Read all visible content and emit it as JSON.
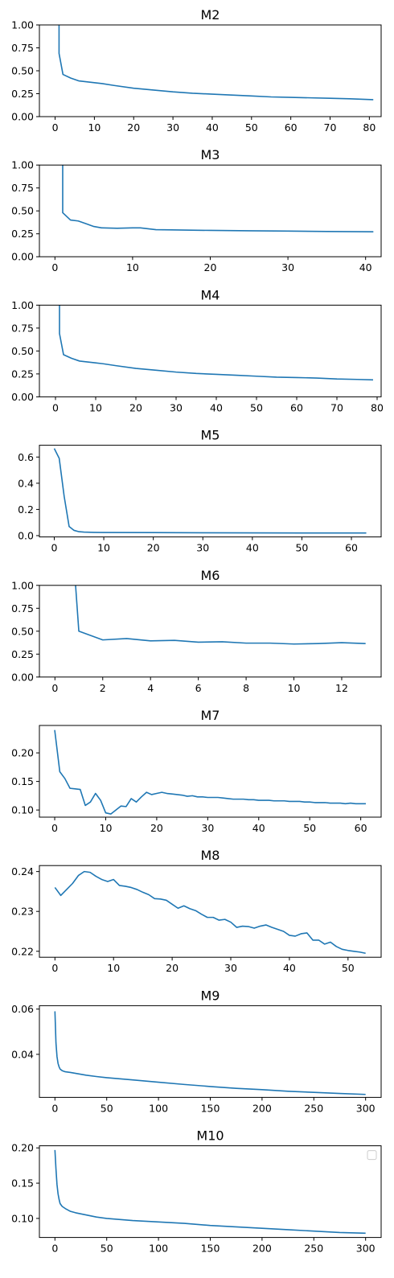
{
  "chart_data": [
    {
      "type": "line",
      "title": "M2",
      "xlim": [
        -4,
        83
      ],
      "ylim": [
        0,
        1.0
      ],
      "xticks": [
        0,
        10,
        20,
        30,
        40,
        50,
        60,
        70,
        80
      ],
      "xtick_labels": [
        "0",
        "10",
        "20",
        "30",
        "40",
        "50",
        "60",
        "70",
        "80"
      ],
      "yticks": [
        0,
        0.25,
        0.5,
        0.75,
        1.0
      ],
      "ytick_labels": [
        "0.00",
        "0.25",
        "0.50",
        "0.75",
        "1.00"
      ],
      "series": [
        {
          "x": [
            1,
            1,
            2,
            4,
            6,
            10,
            12,
            15,
            20,
            25,
            30,
            35,
            40,
            45,
            50,
            55,
            60,
            65,
            70,
            75,
            81
          ],
          "y": [
            1.05,
            0.69,
            0.46,
            0.42,
            0.39,
            0.37,
            0.36,
            0.34,
            0.31,
            0.29,
            0.27,
            0.255,
            0.245,
            0.235,
            0.225,
            0.215,
            0.21,
            0.205,
            0.2,
            0.195,
            0.185
          ]
        }
      ]
    },
    {
      "type": "line",
      "title": "M3",
      "xlim": [
        -2,
        42
      ],
      "ylim": [
        0,
        1.0
      ],
      "xticks": [
        0,
        10,
        20,
        30,
        40
      ],
      "xtick_labels": [
        "0",
        "10",
        "20",
        "30",
        "40"
      ],
      "yticks": [
        0,
        0.25,
        0.5,
        0.75,
        1.0
      ],
      "ytick_labels": [
        "0.00",
        "0.25",
        "0.50",
        "0.75",
        "1.00"
      ],
      "series": [
        {
          "x": [
            1,
            1,
            2,
            3,
            4,
            5,
            6,
            8,
            10,
            11,
            12,
            13,
            15,
            20,
            25,
            30,
            35,
            41
          ],
          "y": [
            1.05,
            0.48,
            0.4,
            0.39,
            0.36,
            0.33,
            0.315,
            0.31,
            0.315,
            0.315,
            0.305,
            0.295,
            0.293,
            0.287,
            0.283,
            0.28,
            0.275,
            0.272
          ]
        }
      ]
    },
    {
      "type": "line",
      "title": "M4",
      "xlim": [
        -4,
        81
      ],
      "ylim": [
        0,
        1.0
      ],
      "xticks": [
        0,
        10,
        20,
        30,
        40,
        50,
        60,
        70,
        80
      ],
      "xtick_labels": [
        "0",
        "10",
        "20",
        "30",
        "40",
        "50",
        "60",
        "70",
        "80"
      ],
      "yticks": [
        0,
        0.25,
        0.5,
        0.75,
        1.0
      ],
      "ytick_labels": [
        "0.00",
        "0.25",
        "0.50",
        "0.75",
        "1.00"
      ],
      "series": [
        {
          "x": [
            1,
            1,
            2,
            4,
            6,
            10,
            12,
            15,
            20,
            25,
            30,
            35,
            40,
            45,
            50,
            55,
            60,
            65,
            70,
            75,
            79
          ],
          "y": [
            1.05,
            0.69,
            0.46,
            0.42,
            0.39,
            0.37,
            0.36,
            0.34,
            0.31,
            0.29,
            0.27,
            0.255,
            0.245,
            0.235,
            0.225,
            0.215,
            0.21,
            0.205,
            0.195,
            0.19,
            0.185
          ]
        }
      ]
    },
    {
      "type": "line",
      "title": "M5",
      "xlim": [
        -3,
        66
      ],
      "ylim": [
        -0.01,
        0.69
      ],
      "xticks": [
        0,
        10,
        20,
        30,
        40,
        50,
        60
      ],
      "xtick_labels": [
        "0",
        "10",
        "20",
        "30",
        "40",
        "50",
        "60"
      ],
      "yticks": [
        0,
        0.2,
        0.4,
        0.6
      ],
      "ytick_labels": [
        "0.0",
        "0.2",
        "0.4",
        "0.6"
      ],
      "series": [
        {
          "x": [
            0,
            1,
            2,
            3,
            4,
            5,
            6,
            8,
            10,
            20,
            30,
            40,
            50,
            63
          ],
          "y": [
            0.665,
            0.59,
            0.3,
            0.07,
            0.04,
            0.03,
            0.027,
            0.025,
            0.024,
            0.023,
            0.022,
            0.021,
            0.02,
            0.02
          ]
        }
      ]
    },
    {
      "type": "line",
      "title": "M6",
      "xlim": [
        -0.65,
        13.65
      ],
      "ylim": [
        0,
        1.0
      ],
      "xticks": [
        0,
        2,
        4,
        6,
        8,
        10,
        12
      ],
      "xtick_labels": [
        "0",
        "2",
        "4",
        "6",
        "8",
        "10",
        "12"
      ],
      "yticks": [
        0,
        0.25,
        0.5,
        0.75,
        1.0
      ],
      "ytick_labels": [
        "0.00",
        "0.25",
        "0.50",
        "0.75",
        "1.00"
      ],
      "series": [
        {
          "x": [
            0.85,
            1,
            2,
            3,
            4,
            5,
            6,
            7,
            8,
            9,
            10,
            11,
            12,
            13
          ],
          "y": [
            1.05,
            0.5,
            0.405,
            0.42,
            0.395,
            0.4,
            0.38,
            0.385,
            0.37,
            0.37,
            0.36,
            0.365,
            0.375,
            0.365
          ]
        }
      ]
    },
    {
      "type": "line",
      "title": "M7",
      "xlim": [
        -3,
        64
      ],
      "ylim": [
        0.0875,
        0.248
      ],
      "xticks": [
        0,
        10,
        20,
        30,
        40,
        50,
        60
      ],
      "xtick_labels": [
        "0",
        "10",
        "20",
        "30",
        "40",
        "50",
        "60"
      ],
      "yticks": [
        0.1,
        0.15,
        0.2
      ],
      "ytick_labels": [
        "0.10",
        "0.15",
        "0.20"
      ],
      "series": [
        {
          "x": [
            0,
            1,
            2,
            3,
            4,
            5,
            6,
            7,
            8,
            9,
            10,
            11,
            12,
            13,
            14,
            15,
            16,
            17,
            18,
            19,
            20,
            21,
            22,
            23,
            24,
            25,
            26,
            27,
            28,
            29,
            30,
            31,
            32,
            33,
            34,
            35,
            36,
            37,
            38,
            39,
            40,
            41,
            42,
            43,
            44,
            45,
            46,
            47,
            48,
            49,
            50,
            51,
            52,
            53,
            54,
            55,
            56,
            57,
            58,
            59,
            60,
            61
          ],
          "y": [
            0.24,
            0.167,
            0.155,
            0.138,
            0.137,
            0.136,
            0.108,
            0.114,
            0.129,
            0.117,
            0.095,
            0.093,
            0.1,
            0.107,
            0.106,
            0.12,
            0.114,
            0.123,
            0.131,
            0.127,
            0.129,
            0.131,
            0.129,
            0.128,
            0.127,
            0.126,
            0.124,
            0.125,
            0.123,
            0.123,
            0.122,
            0.122,
            0.122,
            0.121,
            0.12,
            0.119,
            0.119,
            0.119,
            0.118,
            0.118,
            0.117,
            0.117,
            0.117,
            0.116,
            0.116,
            0.116,
            0.115,
            0.115,
            0.115,
            0.114,
            0.114,
            0.113,
            0.113,
            0.113,
            0.112,
            0.112,
            0.112,
            0.111,
            0.112,
            0.111,
            0.111,
            0.111
          ]
        }
      ]
    },
    {
      "type": "line",
      "title": "M8",
      "xlim": [
        -2.65,
        55.65
      ],
      "ylim": [
        0.2185,
        0.2415
      ],
      "xticks": [
        0,
        10,
        20,
        30,
        40,
        50
      ],
      "xtick_labels": [
        "0",
        "10",
        "20",
        "30",
        "40",
        "50"
      ],
      "yticks": [
        0.22,
        0.23,
        0.24
      ],
      "ytick_labels": [
        "0.22",
        "0.23",
        "0.24"
      ],
      "series": [
        {
          "x": [
            0,
            1,
            2,
            3,
            4,
            5,
            6,
            7,
            8,
            9,
            10,
            11,
            12,
            13,
            14,
            15,
            16,
            17,
            18,
            19,
            20,
            21,
            22,
            23,
            24,
            25,
            26,
            27,
            28,
            29,
            30,
            31,
            32,
            33,
            34,
            35,
            36,
            37,
            38,
            39,
            40,
            41,
            42,
            43,
            44,
            45,
            46,
            47,
            48,
            49,
            50,
            51,
            52,
            53
          ],
          "y": [
            0.236,
            0.234,
            0.2355,
            0.237,
            0.239,
            0.24,
            0.2398,
            0.2388,
            0.238,
            0.2375,
            0.238,
            0.2365,
            0.2363,
            0.236,
            0.2355,
            0.2348,
            0.2342,
            0.2332,
            0.2331,
            0.2328,
            0.2318,
            0.2308,
            0.2314,
            0.2307,
            0.2302,
            0.2293,
            0.2285,
            0.2285,
            0.2278,
            0.228,
            0.2273,
            0.226,
            0.2263,
            0.2262,
            0.2258,
            0.2263,
            0.2266,
            0.226,
            0.2255,
            0.225,
            0.224,
            0.2238,
            0.2244,
            0.2246,
            0.2228,
            0.2228,
            0.2218,
            0.2223,
            0.2212,
            0.2205,
            0.2202,
            0.22,
            0.2198,
            0.2195
          ]
        }
      ]
    },
    {
      "type": "line",
      "title": "M9",
      "xlim": [
        -15,
        315
      ],
      "ylim": [
        0.021,
        0.0615
      ],
      "xticks": [
        0,
        50,
        100,
        150,
        200,
        250,
        300
      ],
      "xtick_labels": [
        "0",
        "50",
        "100",
        "150",
        "200",
        "250",
        "300"
      ],
      "yticks": [
        0.04,
        0.06
      ],
      "ytick_labels": [
        "0.04",
        "0.06"
      ],
      "series": [
        {
          "x": [
            0,
            1,
            2,
            3,
            4,
            5,
            7,
            10,
            15,
            20,
            30,
            40,
            50,
            75,
            100,
            125,
            150,
            175,
            200,
            225,
            250,
            275,
            300
          ],
          "y": [
            0.059,
            0.045,
            0.039,
            0.036,
            0.0345,
            0.0335,
            0.0328,
            0.0323,
            0.032,
            0.0316,
            0.0308,
            0.0302,
            0.0297,
            0.0287,
            0.0277,
            0.0267,
            0.0258,
            0.025,
            0.0244,
            0.0237,
            0.0232,
            0.0227,
            0.0223
          ]
        }
      ]
    },
    {
      "type": "line",
      "title": "M10",
      "xlim": [
        -15,
        315
      ],
      "ylim": [
        0.073,
        0.203
      ],
      "xticks": [
        0,
        50,
        100,
        150,
        200,
        250,
        300
      ],
      "xtick_labels": [
        "0",
        "50",
        "100",
        "150",
        "200",
        "250",
        "300"
      ],
      "yticks": [
        0.1,
        0.15,
        0.2
      ],
      "ytick_labels": [
        "0.10",
        "0.15",
        "0.20"
      ],
      "legend": "top-right",
      "series": [
        {
          "x": [
            0,
            1,
            2,
            3,
            4,
            5,
            7,
            10,
            15,
            20,
            30,
            40,
            50,
            75,
            100,
            125,
            150,
            175,
            200,
            225,
            250,
            275,
            300
          ],
          "y": [
            0.197,
            0.17,
            0.148,
            0.135,
            0.127,
            0.121,
            0.117,
            0.114,
            0.11,
            0.108,
            0.105,
            0.102,
            0.1,
            0.097,
            0.095,
            0.093,
            0.09,
            0.088,
            0.086,
            0.084,
            0.082,
            0.08,
            0.079
          ]
        }
      ]
    }
  ]
}
